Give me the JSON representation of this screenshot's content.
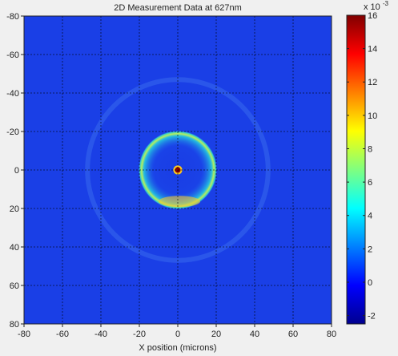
{
  "chart_data": {
    "type": "heatmap",
    "title": "2D Measurement Data at 627nm",
    "xlabel": "X position (microns)",
    "ylabel": "",
    "xlim": [
      -80,
      80
    ],
    "ylim": [
      -80,
      80
    ],
    "y_axis_direction": "down",
    "x_ticks": [
      "-80",
      "-60",
      "-40",
      "-20",
      "0",
      "20",
      "40",
      "60",
      "80"
    ],
    "y_ticks": [
      "-80",
      "-60",
      "-40",
      "-20",
      "0",
      "20",
      "40",
      "60",
      "80"
    ],
    "grid": true,
    "colormap": "jet",
    "colorbar": {
      "range": [
        -2.5,
        16
      ],
      "ticks": [
        "-2",
        "0",
        "2",
        "4",
        "6",
        "8",
        "10",
        "12",
        "14",
        "16"
      ],
      "multiplier_base": "x 10",
      "multiplier_exponent": "-3"
    },
    "background_value": 0.5,
    "features": [
      {
        "name": "central peak",
        "center": [
          0,
          0
        ],
        "radius": 1.5,
        "value": 16
      },
      {
        "name": "bright ring",
        "center": [
          0,
          0
        ],
        "radius": 18,
        "width": 5,
        "value": 8
      },
      {
        "name": "faint outer ring",
        "center": [
          0,
          0
        ],
        "radius": 47,
        "width": 2.5,
        "value": 1.4
      }
    ]
  }
}
